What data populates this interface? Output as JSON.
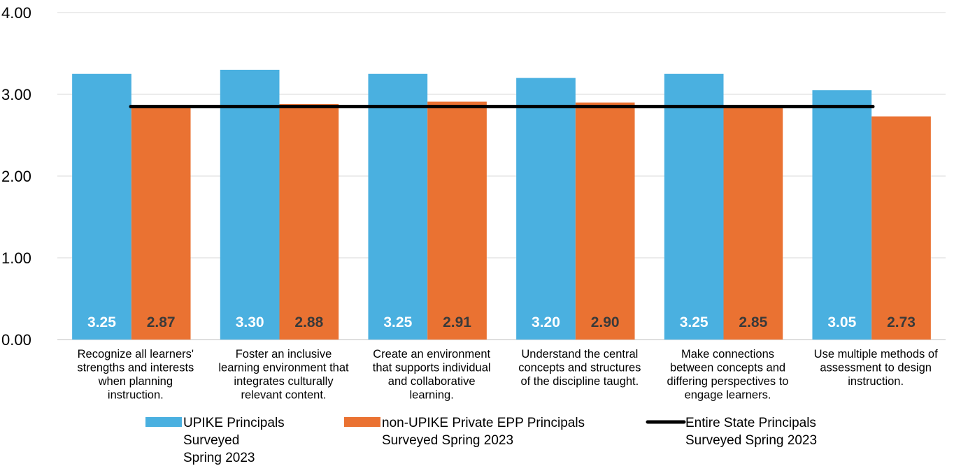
{
  "chart_data": {
    "type": "bar",
    "categories": [
      "Recognize all learners' strengths and interests when planning instruction.",
      "Foster an inclusive learning environment that integrates culturally relevant content.",
      "Create an environment that supports individual and collaborative learning.",
      "Understand the central concepts and structures of the discipline taught.",
      "Make connections between concepts and differing perspectives to engage learners.",
      "Use multiple methods of assessment to design instruction."
    ],
    "category_lines": [
      [
        "Recognize all learners'",
        "strengths and interests",
        "when planning",
        "instruction."
      ],
      [
        "Foster an inclusive",
        "learning environment that",
        "integrates culturally",
        "relevant content."
      ],
      [
        "Create an environment",
        "that supports individual",
        "and collaborative",
        "learning."
      ],
      [
        "Understand the central",
        "concepts and structures",
        "of the discipline taught."
      ],
      [
        "Make connections",
        "between concepts and",
        "differing perspectives to",
        "engage learners."
      ],
      [
        "Use multiple methods of",
        "assessment to design",
        "instruction."
      ]
    ],
    "series": [
      {
        "name": "UPIKE Principals Surveyed Spring 2023",
        "legend_lines": [
          "UPIKE Principals",
          "Surveyed",
          "Spring 2023"
        ],
        "kind": "bar",
        "color": "#4AB0E0",
        "label_color": "#ffffff",
        "values": [
          3.25,
          3.3,
          3.25,
          3.2,
          3.25,
          3.05
        ],
        "labels": [
          "3.25",
          "3.30",
          "3.25",
          "3.20",
          "3.25",
          "3.05"
        ]
      },
      {
        "name": "non-UPIKE Private EPP Principals Surveyed Spring 2023",
        "legend_lines": [
          "non-UPIKE Private EPP Principals",
          "Surveyed Spring 2023"
        ],
        "kind": "bar",
        "color": "#EA7232",
        "label_color": "#3a3a3a",
        "values": [
          2.87,
          2.88,
          2.91,
          2.9,
          2.85,
          2.73
        ],
        "labels": [
          "2.87",
          "2.88",
          "2.91",
          "2.90",
          "2.85",
          "2.73"
        ]
      },
      {
        "name": "Entire State Principals Surveyed Spring 2023",
        "legend_lines": [
          "Entire State Principals",
          "Surveyed Spring 2023"
        ],
        "kind": "line",
        "color": "#000000",
        "values": [
          2.85,
          2.85,
          2.85,
          2.85,
          2.85,
          2.85
        ]
      }
    ],
    "y_ticks": [
      "0.00",
      "1.00",
      "2.00",
      "3.00",
      "4.00"
    ],
    "ylim": [
      0,
      4
    ],
    "grid": true,
    "legend_position": "bottom",
    "title": "",
    "xlabel": "",
    "ylabel": ""
  }
}
